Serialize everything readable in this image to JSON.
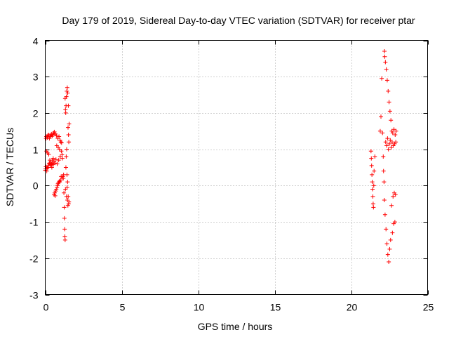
{
  "chart_data": {
    "type": "scatter",
    "title": "Day 179 of 2019, Sidereal Day-to-day VTEC variation (SDTVAR) for receiver ptar",
    "xlabel": "GPS time / hours",
    "ylabel": "SDTVAR / TECUs",
    "xlim": [
      0,
      25
    ],
    "ylim": [
      -3,
      4
    ],
    "xticks": [
      0,
      5,
      10,
      15,
      20,
      25
    ],
    "yticks": [
      -3,
      -2,
      -1,
      0,
      1,
      2,
      3,
      4
    ],
    "xtick_labels": [
      "0",
      "5",
      "10",
      "15",
      "20",
      "25"
    ],
    "ytick_labels": [
      "-3",
      "-2",
      "-1",
      "0",
      "1",
      "2",
      "3",
      "4"
    ],
    "grid": true,
    "marker": "+",
    "color": "#ff0000",
    "series": [
      {
        "name": "SDTVAR",
        "points": [
          [
            0.0,
            0.42
          ],
          [
            0.02,
            0.46
          ],
          [
            0.04,
            0.52
          ],
          [
            0.05,
            1.3
          ],
          [
            0.07,
            1.35
          ],
          [
            0.08,
            0.95
          ],
          [
            0.1,
            0.4
          ],
          [
            0.12,
            0.48
          ],
          [
            0.14,
            1.32
          ],
          [
            0.15,
            0.9
          ],
          [
            0.17,
            1.38
          ],
          [
            0.18,
            0.5
          ],
          [
            0.2,
            0.55
          ],
          [
            0.22,
            1.4
          ],
          [
            0.23,
            0.86
          ],
          [
            0.25,
            0.6
          ],
          [
            0.27,
            1.3
          ],
          [
            0.28,
            0.62
          ],
          [
            0.3,
            0.7
          ],
          [
            0.32,
            1.35
          ],
          [
            0.33,
            0.58
          ],
          [
            0.35,
            1.38
          ],
          [
            0.37,
            0.65
          ],
          [
            0.38,
            0.55
          ],
          [
            0.4,
            1.42
          ],
          [
            0.42,
            0.6
          ],
          [
            0.43,
            0.5
          ],
          [
            0.45,
            1.36
          ],
          [
            0.47,
            0.7
          ],
          [
            0.48,
            0.62
          ],
          [
            0.5,
            1.4
          ],
          [
            0.52,
            0.75
          ],
          [
            0.53,
            0.58
          ],
          [
            0.55,
            1.45
          ],
          [
            0.57,
            0.66
          ],
          [
            0.58,
            -0.25
          ],
          [
            0.6,
            1.48
          ],
          [
            0.62,
            -0.2
          ],
          [
            0.63,
            0.62
          ],
          [
            0.65,
            -0.28
          ],
          [
            0.67,
            1.42
          ],
          [
            0.68,
            -0.15
          ],
          [
            0.7,
            0.72
          ],
          [
            0.72,
            -0.1
          ],
          [
            0.73,
            1.38
          ],
          [
            0.75,
            1.1
          ],
          [
            0.77,
            -0.05
          ],
          [
            0.78,
            0.6
          ],
          [
            0.8,
            0.0
          ],
          [
            0.82,
            1.3
          ],
          [
            0.83,
            0.05
          ],
          [
            0.85,
            1.05
          ],
          [
            0.87,
            0.08
          ],
          [
            0.88,
            0.7
          ],
          [
            0.9,
            1.35
          ],
          [
            0.92,
            0.12
          ],
          [
            0.93,
            1.0
          ],
          [
            0.95,
            0.1
          ],
          [
            0.97,
            1.25
          ],
          [
            0.98,
            0.8
          ],
          [
            1.0,
            0.15
          ],
          [
            1.02,
            1.2
          ],
          [
            1.04,
            0.25
          ],
          [
            1.05,
            0.95
          ],
          [
            1.07,
            1.18
          ],
          [
            1.09,
            0.2
          ],
          [
            1.1,
            0.85
          ],
          [
            1.12,
            0.75
          ],
          [
            1.15,
            0.25
          ],
          [
            1.18,
            0.2
          ],
          [
            1.2,
            0.3
          ],
          [
            1.22,
            -0.2
          ],
          [
            1.24,
            -0.6
          ],
          [
            1.25,
            -0.9
          ],
          [
            1.27,
            -1.2
          ],
          [
            1.28,
            -1.4
          ],
          [
            1.3,
            -1.5
          ],
          [
            1.3,
            2.4
          ],
          [
            1.32,
            2.1
          ],
          [
            1.32,
            -0.1
          ],
          [
            1.34,
            2.0
          ],
          [
            1.35,
            0.5
          ],
          [
            1.36,
            2.2
          ],
          [
            1.37,
            0.8
          ],
          [
            1.38,
            2.45
          ],
          [
            1.39,
            -0.3
          ],
          [
            1.4,
            1.0
          ],
          [
            1.41,
            2.6
          ],
          [
            1.42,
            0.3
          ],
          [
            1.43,
            -0.05
          ],
          [
            1.44,
            2.7
          ],
          [
            1.45,
            -0.4
          ],
          [
            1.46,
            0.1
          ],
          [
            1.47,
            2.55
          ],
          [
            1.48,
            -0.55
          ],
          [
            1.49,
            1.6
          ],
          [
            1.5,
            -0.3
          ],
          [
            1.51,
            2.2
          ],
          [
            1.52,
            1.4
          ],
          [
            1.53,
            -0.5
          ],
          [
            1.54,
            1.2
          ],
          [
            1.55,
            -0.45
          ],
          [
            1.56,
            1.7
          ],
          [
            21.3,
            0.95
          ],
          [
            21.32,
            0.75
          ],
          [
            21.34,
            0.55
          ],
          [
            21.36,
            0.3
          ],
          [
            21.38,
            0.1
          ],
          [
            21.4,
            -0.1
          ],
          [
            21.42,
            -0.3
          ],
          [
            21.44,
            -0.5
          ],
          [
            21.46,
            -0.6
          ],
          [
            21.48,
            0.0
          ],
          [
            21.5,
            0.4
          ],
          [
            21.55,
            0.8
          ],
          [
            21.9,
            1.5
          ],
          [
            21.95,
            1.9
          ],
          [
            22.0,
            2.95
          ],
          [
            22.05,
            1.45
          ],
          [
            22.1,
            0.8
          ],
          [
            22.12,
            0.4
          ],
          [
            22.15,
            0.1
          ],
          [
            22.17,
            -0.4
          ],
          [
            22.18,
            3.7
          ],
          [
            22.2,
            3.55
          ],
          [
            22.22,
            -0.8
          ],
          [
            22.24,
            3.4
          ],
          [
            22.26,
            1.2
          ],
          [
            22.28,
            -1.2
          ],
          [
            22.3,
            3.2
          ],
          [
            22.32,
            1.1
          ],
          [
            22.34,
            -1.6
          ],
          [
            22.36,
            2.9
          ],
          [
            22.38,
            1.3
          ],
          [
            22.4,
            -1.9
          ],
          [
            22.42,
            2.6
          ],
          [
            22.44,
            1.0
          ],
          [
            22.46,
            -2.1
          ],
          [
            22.48,
            2.3
          ],
          [
            22.5,
            1.15
          ],
          [
            22.52,
            -1.75
          ],
          [
            22.54,
            2.05
          ],
          [
            22.56,
            1.25
          ],
          [
            22.58,
            -1.5
          ],
          [
            22.6,
            1.8
          ],
          [
            22.62,
            1.05
          ],
          [
            22.64,
            -0.55
          ],
          [
            22.66,
            1.5
          ],
          [
            22.68,
            1.2
          ],
          [
            22.7,
            -1.3
          ],
          [
            22.72,
            1.45
          ],
          [
            22.74,
            -0.3
          ],
          [
            22.76,
            1.1
          ],
          [
            22.78,
            -1.05
          ],
          [
            22.8,
            1.55
          ],
          [
            22.82,
            -0.2
          ],
          [
            22.84,
            1.15
          ],
          [
            22.86,
            -1.0
          ],
          [
            22.88,
            1.4
          ],
          [
            22.9,
            -0.25
          ],
          [
            22.92,
            1.2
          ],
          [
            22.94,
            1.5
          ]
        ]
      }
    ]
  }
}
